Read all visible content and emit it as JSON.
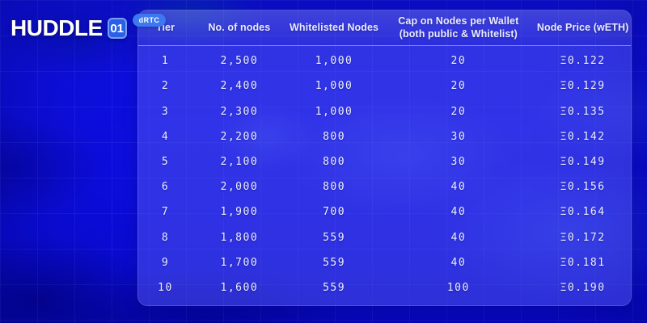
{
  "logo": {
    "brand": "HUDDLE",
    "number": "01",
    "badge": "dRTC"
  },
  "table": {
    "columns": {
      "tier": "Tier",
      "nodes": "No. of nodes",
      "whitelisted": "Whitelisted Nodes",
      "cap": "Cap on Nodes per Wallet\n(both public & Whitelist)",
      "price": "Node Price (wETH)"
    },
    "rows": [
      {
        "tier": "1",
        "nodes": "2,500",
        "whitelisted": "1,000",
        "cap": "20",
        "price": "Ξ0.122"
      },
      {
        "tier": "2",
        "nodes": "2,400",
        "whitelisted": "1,000",
        "cap": "20",
        "price": "Ξ0.129"
      },
      {
        "tier": "3",
        "nodes": "2,300",
        "whitelisted": "1,000",
        "cap": "20",
        "price": "Ξ0.135"
      },
      {
        "tier": "4",
        "nodes": "2,200",
        "whitelisted": "800",
        "cap": "30",
        "price": "Ξ0.142"
      },
      {
        "tier": "5",
        "nodes": "2,100",
        "whitelisted": "800",
        "cap": "30",
        "price": "Ξ0.149"
      },
      {
        "tier": "6",
        "nodes": "2,000",
        "whitelisted": "800",
        "cap": "40",
        "price": "Ξ0.156"
      },
      {
        "tier": "7",
        "nodes": "1,900",
        "whitelisted": "700",
        "cap": "40",
        "price": "Ξ0.164"
      },
      {
        "tier": "8",
        "nodes": "1,800",
        "whitelisted": "559",
        "cap": "40",
        "price": "Ξ0.172"
      },
      {
        "tier": "9",
        "nodes": "1,700",
        "whitelisted": "559",
        "cap": "40",
        "price": "Ξ0.181"
      },
      {
        "tier": "10",
        "nodes": "1,600",
        "whitelisted": "559",
        "cap": "100",
        "price": "Ξ0.190"
      }
    ]
  },
  "colors": {
    "background": "#0c0dda",
    "panel_body": "#3a3eec",
    "panel_header": "#4b50d6",
    "text": "#eef0ff",
    "logo_badge": "#3d78f1",
    "logo_number_box": "#2a5fe8",
    "eth_symbol": "Ξ"
  }
}
